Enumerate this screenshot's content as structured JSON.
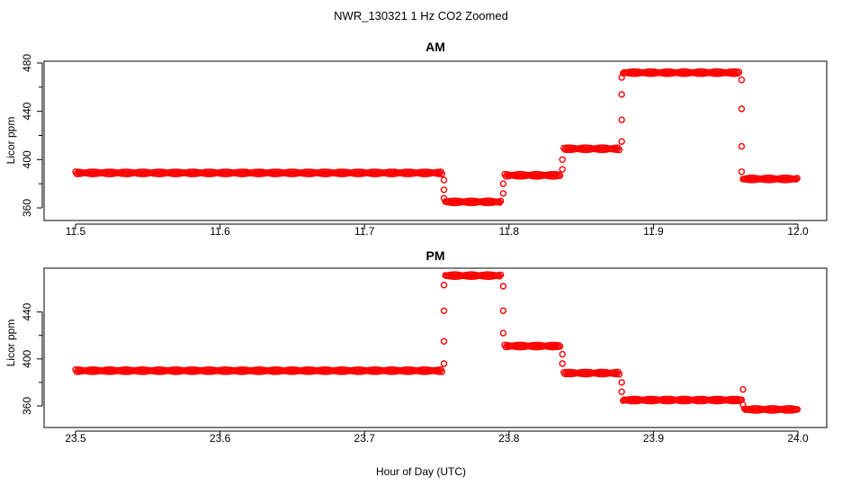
{
  "figure": {
    "title": "NWR_130321  1 Hz CO2 Zoomed",
    "xlabel": "Hour of Day (UTC)",
    "point_color": "#ff0000"
  },
  "chart_data": [
    {
      "type": "scatter",
      "title": "AM",
      "ylabel": "Licor ppm",
      "xlim": [
        11.5,
        12.0
      ],
      "ylim": [
        360,
        480
      ],
      "xticks": [
        11.5,
        11.6,
        11.7,
        11.8,
        11.9,
        12.0
      ],
      "xtick_labels": [
        "11.5",
        "11.6",
        "11.7",
        "11.8",
        "11.9",
        "12.0"
      ],
      "yticks": [
        360,
        400,
        440,
        480
      ],
      "ytick_labels": [
        "360",
        "400",
        "440",
        "480"
      ],
      "grid": false,
      "series": [
        {
          "color": "#ff0000",
          "marker": "open-circle",
          "segments": [
            {
              "x": [
                11.5,
                11.754
              ],
              "y": 389
            },
            {
              "x": [
                11.756,
                11.795
              ],
              "y": 365
            },
            {
              "x": [
                11.797,
                11.836
              ],
              "y": 387
            },
            {
              "x": [
                11.838,
                11.877
              ],
              "y": 409
            },
            {
              "x": [
                11.879,
                11.96
              ],
              "y": 472
            },
            {
              "x": [
                11.962,
                12.0
              ],
              "y": 384
            }
          ],
          "transitions": [
            {
              "x": 11.755,
              "y": [
                383,
                375,
                368
              ]
            },
            {
              "x": 11.796,
              "y": [
                372,
                380
              ]
            },
            {
              "x": 11.837,
              "y": [
                392,
                400
              ]
            },
            {
              "x": 11.878,
              "y": [
                415,
                433,
                454,
                468
              ]
            },
            {
              "x": 11.961,
              "y": [
                466,
                442,
                411,
                390
              ]
            }
          ]
        }
      ]
    },
    {
      "type": "scatter",
      "title": "PM",
      "ylabel": "Licor ppm",
      "xlim": [
        23.5,
        24.0
      ],
      "ylim": [
        360,
        475
      ],
      "xticks": [
        23.5,
        23.6,
        23.7,
        23.8,
        23.9,
        24.0
      ],
      "xtick_labels": [
        "23.5",
        "23.6",
        "23.7",
        "23.8",
        "23.9",
        "24.0"
      ],
      "yticks": [
        360,
        400,
        440
      ],
      "ytick_labels": [
        "360",
        "400",
        "440"
      ],
      "grid": false,
      "series": [
        {
          "color": "#ff0000",
          "marker": "open-circle",
          "segments": [
            {
              "x": [
                23.5,
                23.754
              ],
              "y": 390
            },
            {
              "x": [
                23.756,
                23.795
              ],
              "y": 471
            },
            {
              "x": [
                23.797,
                23.836
              ],
              "y": 411
            },
            {
              "x": [
                23.838,
                23.877
              ],
              "y": 388
            },
            {
              "x": [
                23.879,
                23.961
              ],
              "y": 365
            },
            {
              "x": [
                23.963,
                24.0
              ],
              "y": 357
            }
          ],
          "transitions": [
            {
              "x": 23.755,
              "y": [
                396,
                415,
                441,
                463
              ]
            },
            {
              "x": 23.796,
              "y": [
                462,
                441,
                422
              ]
            },
            {
              "x": 23.837,
              "y": [
                404,
                396
              ]
            },
            {
              "x": 23.878,
              "y": [
                380,
                372
              ]
            },
            {
              "x": 23.962,
              "y": [
                374,
                361
              ]
            }
          ]
        }
      ]
    }
  ]
}
